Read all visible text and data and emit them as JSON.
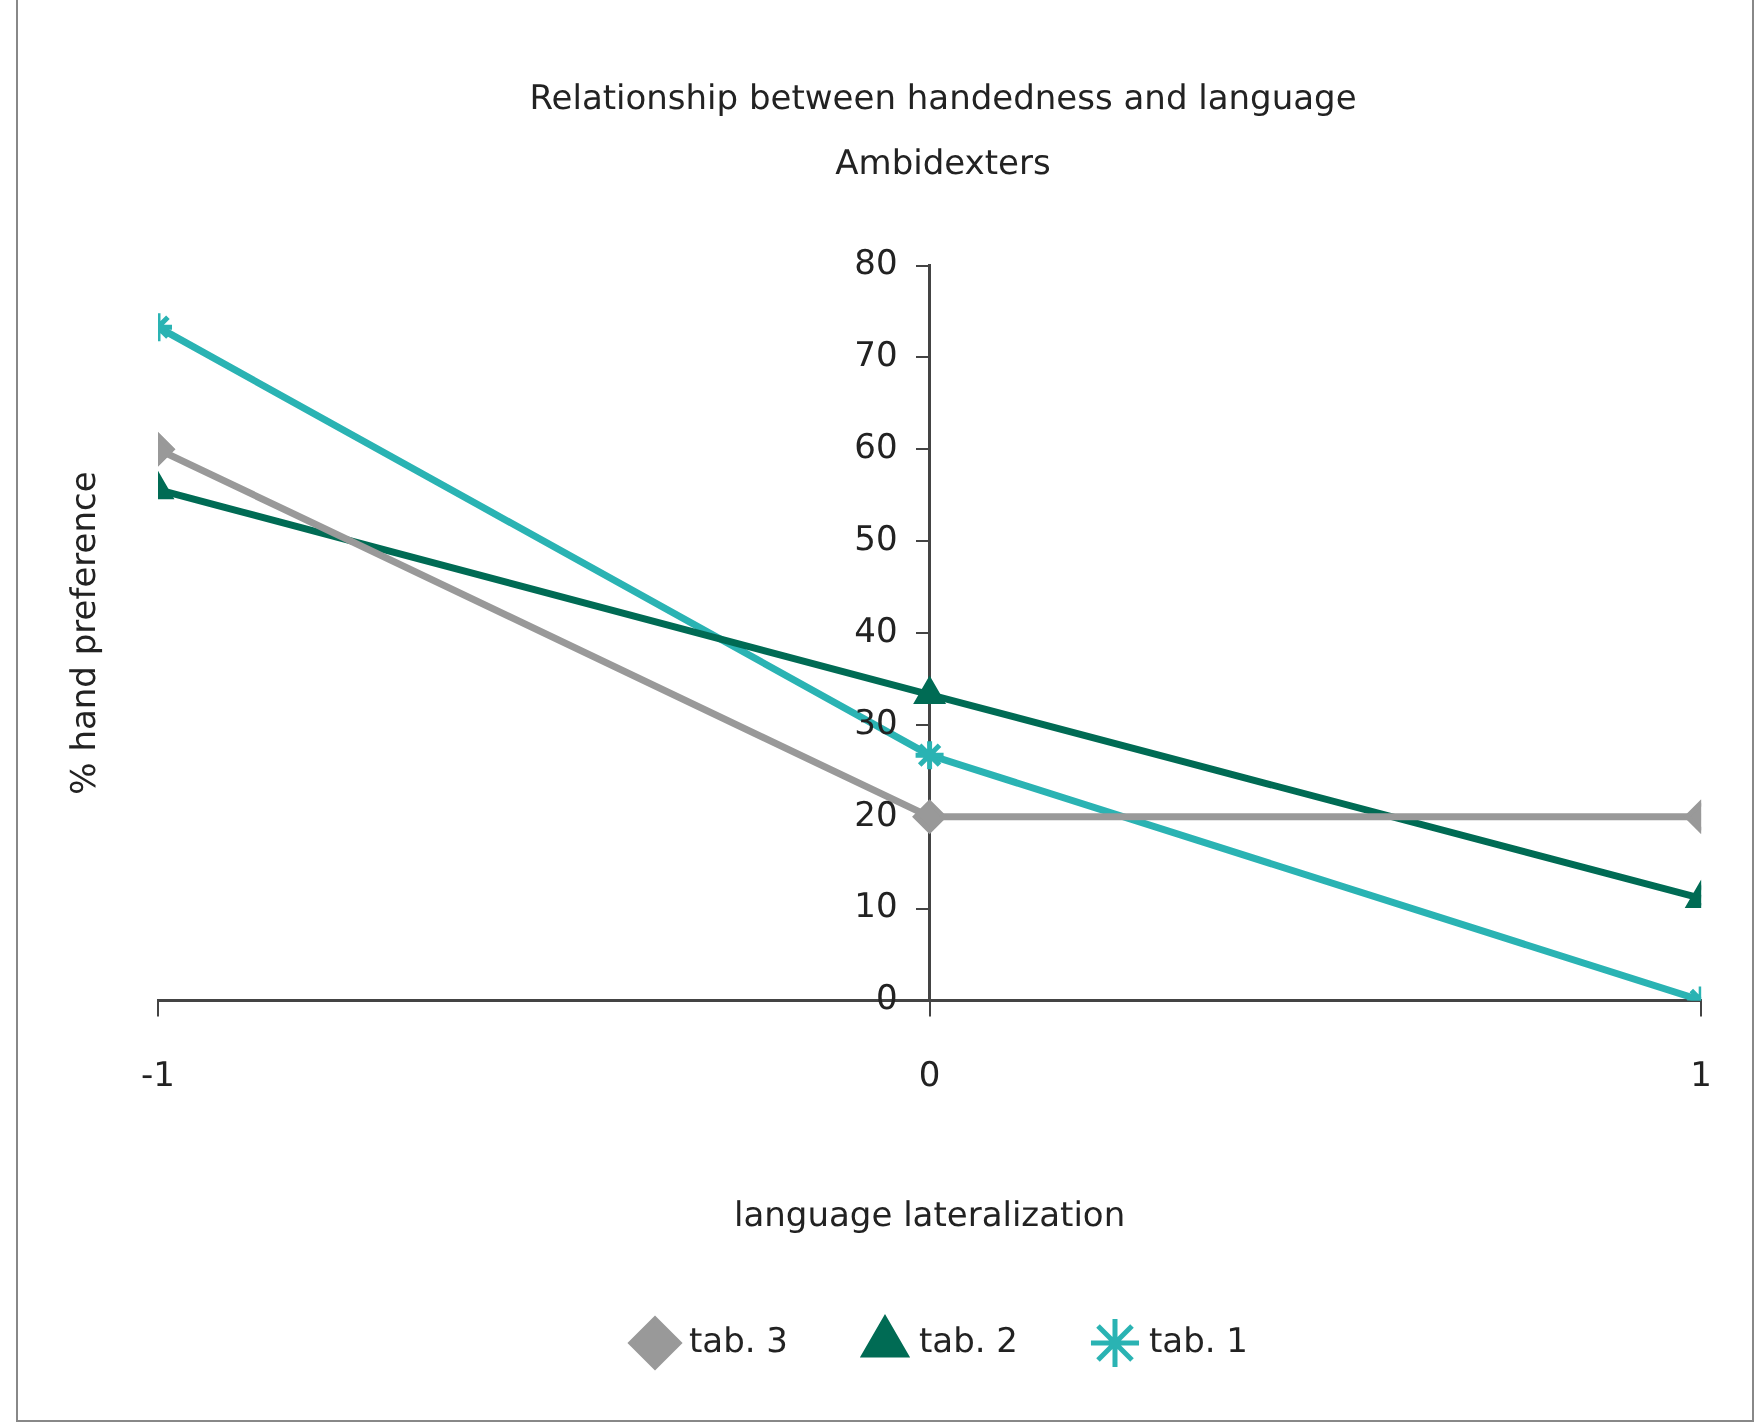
{
  "chart_data": {
    "type": "line",
    "title": "Relationship between handedness and language",
    "subtitle": "Ambidexters",
    "xlabel": "language lateralization",
    "ylabel": "% hand preference",
    "x": [
      -1,
      0,
      1
    ],
    "xlim": [
      -1,
      1
    ],
    "xticks": [
      -1,
      0,
      1
    ],
    "ylim": [
      0,
      80
    ],
    "yticks": [
      0,
      10,
      20,
      30,
      40,
      50,
      60,
      70,
      80
    ],
    "grid": false,
    "legend": "bottom",
    "line_style": "solid",
    "series": [
      {
        "name": "tab. 3",
        "color": "#999999",
        "marker": "diamond",
        "values": [
          60,
          20,
          20
        ]
      },
      {
        "name": "tab. 2",
        "color": "#006b54",
        "marker": "triangle",
        "values": [
          55.6,
          33.3,
          11.1
        ]
      },
      {
        "name": "tab. 1",
        "color": "#2ab3b3",
        "marker": "cross",
        "values": [
          73.3,
          26.7,
          0
        ]
      }
    ]
  }
}
